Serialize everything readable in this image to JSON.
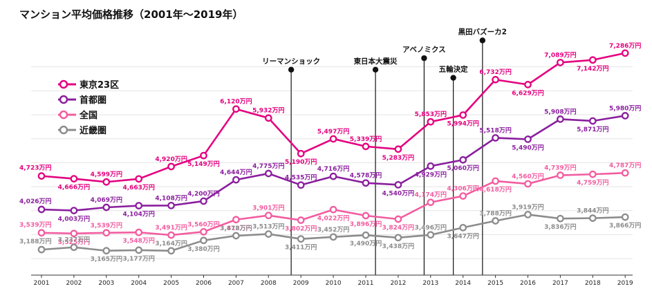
{
  "chart_data": {
    "type": "line",
    "title": "マンション平均価格推移（2001年〜2019年）",
    "xlabel": "",
    "ylabel": "",
    "ylim": [
      2700,
      7600
    ],
    "grid": true,
    "legend_position": "top-left",
    "unit_suffix": "万円",
    "categories": [
      "2001",
      "2002",
      "2003",
      "2004",
      "2005",
      "2006",
      "2007",
      "2008",
      "2009",
      "2010",
      "2011",
      "2012",
      "2013",
      "2014",
      "2015",
      "2016",
      "2017",
      "2018",
      "2019"
    ],
    "series": [
      {
        "name": "東京23区",
        "color": "#e4007f",
        "values": [
          4723,
          4666,
          4599,
          4663,
          4920,
          5149,
          6120,
          5932,
          5190,
          5497,
          5339,
          5283,
          5853,
          5994,
          6732,
          6629,
          7089,
          7142,
          7286
        ],
        "label_pos": [
          "left",
          "below",
          "above",
          "below",
          "above",
          "below",
          "above",
          "above",
          "below",
          "above",
          "above",
          "below",
          "above",
          "below",
          "above",
          "below",
          "above",
          "below",
          "above"
        ],
        "labels": [
          "4,723万円",
          "4,666万円",
          "4,599万円",
          "4,663万円",
          "4,920万円",
          "5,149万円",
          "6,120万円",
          "5,932万円",
          "5,190万円",
          "5,497万円",
          "5,339万円",
          "5,283万円",
          "5,853万円",
          "5,994万円",
          "6,732万円",
          "6,629万円",
          "7,089万円",
          "7,142万円",
          "7,286万円"
        ]
      },
      {
        "name": "首都圏",
        "color": "#8a1e9e",
        "values": [
          4026,
          4003,
          4069,
          4104,
          4108,
          4200,
          4644,
          4775,
          4535,
          4716,
          4578,
          4540,
          4929,
          5060,
          5518,
          5490,
          5908,
          5871,
          5980
        ],
        "label_pos": [
          "left",
          "below",
          "above",
          "below",
          "above",
          "above",
          "above",
          "above",
          "above",
          "above",
          "above",
          "below",
          "below",
          "below",
          "above",
          "below",
          "above",
          "below",
          "above"
        ],
        "labels": [
          "4,026万円",
          "4,003万円",
          "4,069万円",
          "4,104万円",
          "4,108万円",
          "4,200万円",
          "4,644万円",
          "4,775万円",
          "4,535万円",
          "4,716万円",
          "4,578万円",
          "4,540万円",
          "4,929万円",
          "5,060万円",
          "5,518万円",
          "5,490万円",
          "5,908万円",
          "5,871万円",
          "5,980万円"
        ]
      },
      {
        "name": "全国",
        "color": "#f25ca0",
        "values": [
          3539,
          3525,
          3539,
          3548,
          3491,
          3560,
          3813,
          3901,
          3802,
          4022,
          3896,
          3824,
          4174,
          4306,
          4618,
          4560,
          4739,
          4759,
          4787
        ],
        "label_pos": [
          "left",
          "below",
          "above",
          "below",
          "above",
          "above",
          "below",
          "above",
          "below",
          "below",
          "below",
          "below",
          "above",
          "above",
          "below",
          "above",
          "above",
          "below",
          "above"
        ],
        "labels": [
          "3,539万円",
          "3,525万円",
          "3,539万円",
          "3,548万円",
          "3,491万円",
          "3,560万円",
          "3,813万円",
          "3,901万円",
          "3,802万円",
          "4,022万円",
          "3,896万円",
          "3,824万円",
          "4,174万円",
          "4,306万円",
          "4,618万円",
          "4,560万円",
          "4,739万円",
          "4,759万円",
          "4,787万円"
        ]
      },
      {
        "name": "近畿圏",
        "color": "#8c8c8c",
        "values": [
          3188,
          3237,
          3165,
          3177,
          3164,
          3380,
          3478,
          3513,
          3411,
          3452,
          3490,
          3438,
          3496,
          3647,
          3788,
          3919,
          3836,
          3844,
          3866
        ],
        "label_pos": [
          "left",
          "above",
          "below",
          "below",
          "above",
          "below",
          "above",
          "above",
          "below",
          "above",
          "below",
          "below",
          "above",
          "below",
          "above",
          "above",
          "below",
          "above",
          "below"
        ],
        "labels": [
          "3,188万円",
          "3,237万円",
          "3,165万円",
          "3,177万円",
          "3,164万円",
          "3,380万円",
          "3,478万円",
          "3,513万円",
          "3,411万円",
          "3,452万円",
          "3,490万円",
          "3,438万円",
          "3,496万円",
          "3,647万円",
          "3,788万円",
          "3,919万円",
          "3,836万円",
          "3,844万円",
          "3,866万円"
        ]
      }
    ],
    "events": [
      {
        "label": "リーマンショック",
        "year": 2008.7,
        "top": 6940
      },
      {
        "label": "東日本大震災",
        "year": 2011.3,
        "top": 6940
      },
      {
        "label": "アベノミクス",
        "year": 2012.8,
        "top": 7180
      },
      {
        "label": "五輪決定",
        "year": 2013.7,
        "top": 6770
      },
      {
        "label": "黒田バズーカ2",
        "year": 2014.6,
        "top": 7550
      }
    ]
  }
}
